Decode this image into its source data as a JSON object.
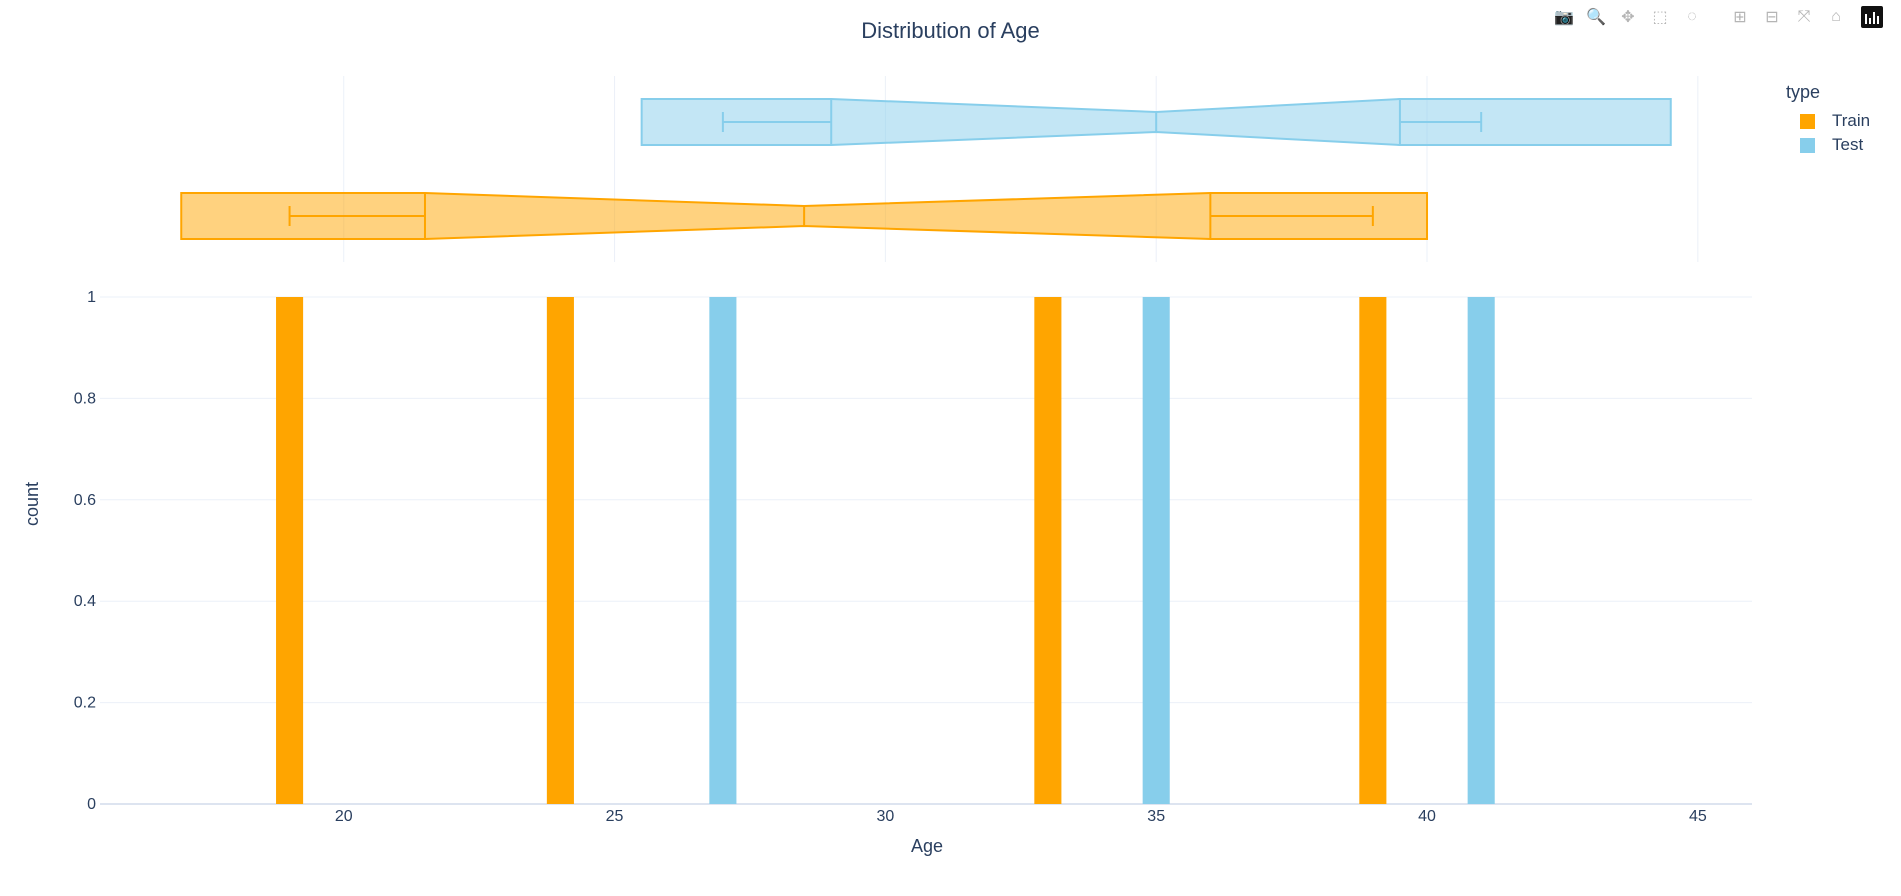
{
  "chart_data": {
    "type": "bar",
    "title": "Distribution of Age",
    "xlabel": "Age",
    "ylabel": "count",
    "xlim": [
      15.5,
      46
    ],
    "ylim": [
      0,
      1
    ],
    "xticks": [
      20,
      25,
      30,
      35,
      40,
      45
    ],
    "yticks": [
      0,
      0.2,
      0.4,
      0.6,
      0.8,
      1
    ],
    "ytick_labels": [
      "0",
      "0.2",
      "0.4",
      "0.6",
      "0.8",
      "1"
    ],
    "legend_title": "type",
    "legend_position": "top-right",
    "bin_width": 0.5,
    "series": [
      {
        "name": "Train",
        "color": "#FFA500",
        "bins": [
          {
            "x": 19,
            "count": 1
          },
          {
            "x": 24,
            "count": 1
          },
          {
            "x": 33,
            "count": 1
          },
          {
            "x": 39,
            "count": 1
          }
        ],
        "box": {
          "whisker_low": 19,
          "q1": 21.5,
          "median": 28.5,
          "q3": 36,
          "whisker_high": 39,
          "notch_low": 17,
          "notch_high": 40
        }
      },
      {
        "name": "Test",
        "color": "#87CEEB",
        "bins": [
          {
            "x": 27,
            "count": 1
          },
          {
            "x": 35,
            "count": 1
          },
          {
            "x": 41,
            "count": 1
          }
        ],
        "box": {
          "whisker_low": 27,
          "q1": 29,
          "median": 35,
          "q3": 39.5,
          "whisker_high": 41,
          "notch_low": 25.5,
          "notch_high": 44.5
        }
      }
    ]
  },
  "modebar": {
    "buttons": [
      {
        "icon": "camera-icon",
        "glyph": "📷",
        "title": "Download plot as a png",
        "active": false
      },
      {
        "icon": "zoom-icon",
        "glyph": "🔍",
        "title": "Zoom",
        "active": true
      },
      {
        "icon": "pan-icon",
        "glyph": "✥",
        "title": "Pan",
        "active": false
      },
      {
        "icon": "box-select-icon",
        "glyph": "⬚",
        "title": "Box Select",
        "active": false
      },
      {
        "icon": "lasso-select-icon",
        "glyph": "◌",
        "title": "Lasso Select",
        "active": false
      },
      {
        "icon": "zoom-in-icon",
        "glyph": "⊞",
        "title": "Zoom in",
        "active": false
      },
      {
        "icon": "zoom-out-icon",
        "glyph": "⊟",
        "title": "Zoom out",
        "active": false
      },
      {
        "icon": "autoscale-icon",
        "glyph": "⤧",
        "title": "Autoscale",
        "active": false
      },
      {
        "icon": "reset-axes-icon",
        "glyph": "⌂",
        "title": "Reset axes",
        "active": false
      }
    ],
    "logo_icon": "plotly-logo-icon"
  },
  "colors": {
    "text": "#2a3f5f",
    "grid": "#ebf0f8",
    "zeroline": "#dde4f0",
    "train": "#FFA500",
    "test": "#87CEEB"
  }
}
